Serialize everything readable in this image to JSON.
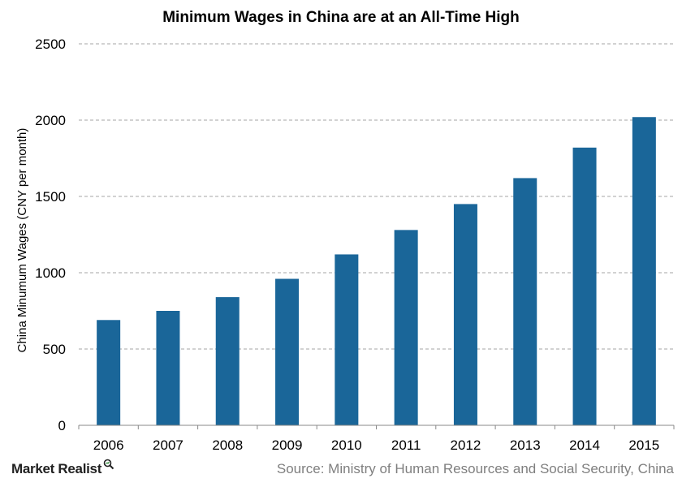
{
  "chart_data": {
    "type": "bar",
    "title": "Minimum Wages in China are at an All-Time High",
    "xlabel": "",
    "ylabel": "China Minumum Wages (CNY per month)",
    "categories": [
      "2006",
      "2007",
      "2008",
      "2009",
      "2010",
      "2011",
      "2012",
      "2013",
      "2014",
      "2015"
    ],
    "values": [
      690,
      750,
      840,
      960,
      1120,
      1280,
      1450,
      1620,
      1820,
      2020
    ],
    "ylim": [
      0,
      2500
    ],
    "yticks": [
      "0",
      "500",
      "1000",
      "1500",
      "2000",
      "2500"
    ],
    "grid": "horizontal dashed",
    "legend": "none",
    "bar_color": "#1a6699",
    "grid_color": "#a6a6a6"
  },
  "footer": {
    "brand": "Market Realist",
    "brand_icon": "magnifier-icon",
    "source": "Source: Ministry of Human Resources and Social Security, China"
  }
}
